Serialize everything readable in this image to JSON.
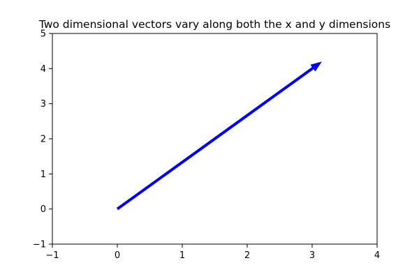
{
  "chart_data": {
    "type": "quiver",
    "title": "Two dimensional vectors vary along both the x and y dimensions",
    "xlabel": "",
    "ylabel": "",
    "xlim": [
      -1,
      4
    ],
    "ylim": [
      -1,
      5
    ],
    "xticks": [
      "−1",
      "0",
      "1",
      "2",
      "3",
      "4"
    ],
    "yticks": [
      "−1",
      "0",
      "1",
      "2",
      "3",
      "4",
      "5"
    ],
    "grid": false,
    "vectors": [
      {
        "x0": 0,
        "y0": 0,
        "dx": 3.15,
        "dy": 4.2,
        "color": "#0000ff"
      }
    ]
  }
}
